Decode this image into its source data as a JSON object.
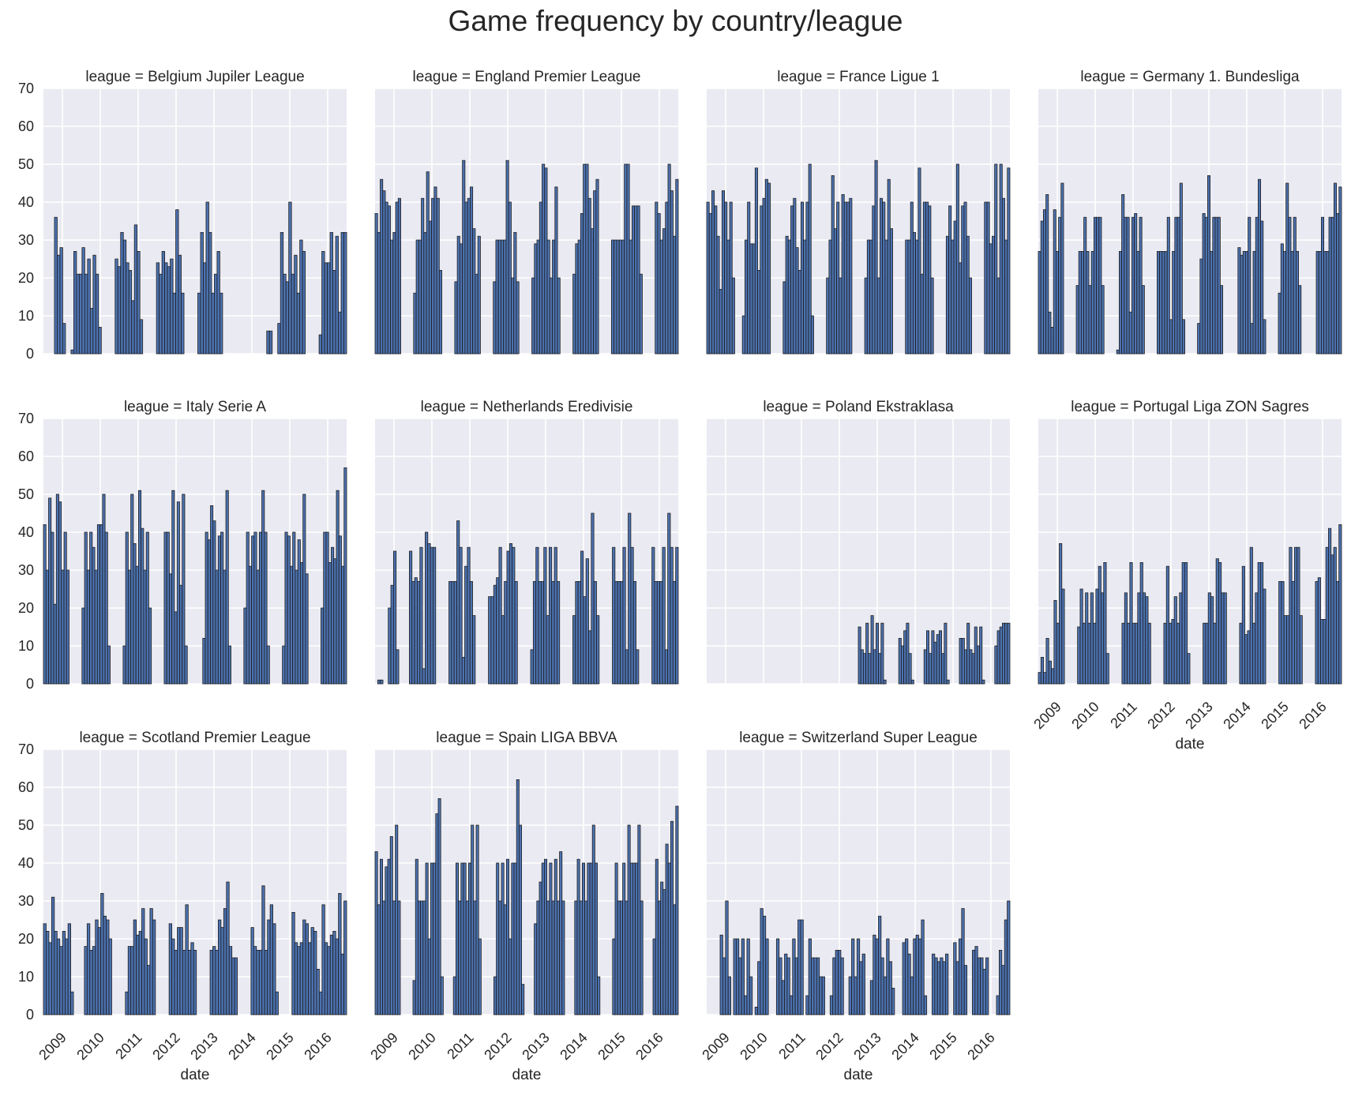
{
  "chart_data": {
    "type": "bar",
    "title": "Game frequency by country/league",
    "xlabel": "date",
    "ylabel": "",
    "ylim": [
      0,
      70
    ],
    "yticks": [
      0,
      10,
      20,
      30,
      40,
      50,
      60,
      70
    ],
    "xticks": [
      "2009",
      "2010",
      "2011",
      "2012",
      "2013",
      "2014",
      "2015",
      "2016"
    ],
    "x_range_months": [
      "2008-07",
      "2016-06"
    ],
    "grid": true,
    "facet_label_prefix": "league = ",
    "colors": {
      "bar": "#4c72b0",
      "edge": "#1e1e1e",
      "panel_bg": "#eaeaf2",
      "grid": "#ffffff"
    },
    "panels": [
      {
        "league": "Belgium Jupiler League",
        "values": [
          0,
          0,
          0,
          0,
          36,
          26,
          28,
          8,
          0,
          0,
          1,
          27,
          21,
          21,
          28,
          21,
          25,
          12,
          26,
          21,
          7,
          0,
          0,
          0,
          0,
          0,
          25,
          23,
          32,
          30,
          24,
          22,
          14,
          34,
          27,
          9,
          0,
          0,
          0,
          0,
          0,
          24,
          21,
          27,
          24,
          23,
          25,
          16,
          38,
          26,
          16,
          0,
          0,
          0,
          0,
          0,
          16,
          32,
          24,
          40,
          32,
          16,
          21,
          27,
          16,
          0,
          0,
          0,
          0,
          0,
          0,
          0,
          0,
          0,
          0,
          0,
          0,
          0,
          0,
          0,
          0,
          6,
          6,
          0,
          0,
          8,
          32,
          21,
          19,
          40,
          21,
          26,
          16,
          30,
          27,
          0,
          0,
          0,
          0,
          0,
          5,
          27,
          24,
          24,
          32,
          22,
          31,
          11,
          32,
          32
        ]
      },
      {
        "league": "England Premier League",
        "values": [
          37,
          32,
          46,
          43,
          40,
          39,
          30,
          32,
          40,
          41,
          0,
          0,
          0,
          0,
          0,
          16,
          30,
          30,
          41,
          32,
          48,
          35,
          41,
          44,
          41,
          22,
          0,
          0,
          0,
          0,
          0,
          19,
          31,
          29,
          51,
          40,
          41,
          44,
          33,
          21,
          31,
          0,
          0,
          0,
          0,
          0,
          19,
          30,
          30,
          30,
          30,
          51,
          40,
          20,
          32,
          19,
          0,
          0,
          0,
          0,
          0,
          20,
          29,
          30,
          40,
          50,
          49,
          30,
          20,
          30,
          44,
          20,
          0,
          0,
          0,
          0,
          0,
          21,
          29,
          30,
          37,
          50,
          50,
          41,
          33,
          43,
          46,
          0,
          0,
          0,
          0,
          0,
          30,
          30,
          30,
          30,
          30,
          50,
          50,
          30,
          39,
          39,
          39,
          21,
          0,
          0,
          0,
          0,
          0,
          40,
          37,
          30,
          33,
          40,
          50,
          43,
          31,
          46
        ]
      },
      {
        "league": "France Ligue 1",
        "values": [
          40,
          37,
          43,
          39,
          31,
          17,
          43,
          40,
          30,
          40,
          20,
          0,
          0,
          0,
          10,
          30,
          40,
          29,
          29,
          49,
          22,
          39,
          41,
          46,
          45,
          0,
          0,
          0,
          0,
          0,
          19,
          31,
          30,
          39,
          41,
          28,
          22,
          40,
          30,
          40,
          50,
          10,
          0,
          0,
          0,
          0,
          0,
          20,
          30,
          47,
          33,
          40,
          20,
          42,
          40,
          40,
          41,
          0,
          0,
          0,
          0,
          0,
          20,
          30,
          30,
          39,
          51,
          20,
          41,
          40,
          30,
          46,
          33,
          0,
          0,
          0,
          0,
          0,
          30,
          30,
          40,
          32,
          30,
          49,
          21,
          40,
          40,
          39,
          20,
          0,
          0,
          0,
          0,
          0,
          31,
          39,
          30,
          35,
          50,
          24,
          39,
          40,
          31,
          20,
          0,
          0,
          0,
          0,
          0,
          40,
          40,
          29,
          31,
          50,
          20,
          50,
          41,
          30,
          49
        ]
      },
      {
        "league": "Germany 1. Bundesliga",
        "values": [
          27,
          35,
          38,
          42,
          11,
          7,
          38,
          27,
          36,
          45,
          0,
          0,
          0,
          0,
          0,
          18,
          27,
          27,
          36,
          27,
          18,
          27,
          36,
          36,
          36,
          18,
          0,
          0,
          0,
          0,
          0,
          1,
          27,
          42,
          36,
          36,
          11,
          36,
          37,
          27,
          36,
          18,
          0,
          0,
          0,
          0,
          0,
          27,
          27,
          27,
          27,
          36,
          9,
          27,
          36,
          36,
          45,
          9,
          0,
          0,
          0,
          0,
          0,
          8,
          25,
          37,
          36,
          47,
          27,
          36,
          36,
          36,
          18,
          0,
          0,
          0,
          0,
          0,
          0,
          28,
          26,
          27,
          27,
          36,
          8,
          27,
          36,
          46,
          35,
          9,
          0,
          0,
          0,
          0,
          0,
          16,
          29,
          27,
          45,
          36,
          27,
          36,
          27,
          18,
          0,
          0,
          0,
          0,
          0,
          0,
          27,
          27,
          36,
          27,
          27,
          36,
          36,
          45,
          37,
          44
        ]
      },
      {
        "league": "Italy Serie A",
        "values": [
          42,
          30,
          49,
          40,
          21,
          50,
          48,
          30,
          40,
          30,
          0,
          0,
          0,
          0,
          0,
          20,
          40,
          30,
          40,
          36,
          30,
          42,
          42,
          50,
          40,
          10,
          0,
          0,
          0,
          0,
          0,
          10,
          40,
          30,
          50,
          37,
          31,
          51,
          41,
          30,
          40,
          20,
          0,
          0,
          0,
          0,
          0,
          40,
          40,
          29,
          51,
          19,
          48,
          26,
          50,
          10,
          0,
          0,
          0,
          0,
          0,
          0,
          12,
          40,
          38,
          47,
          43,
          30,
          39,
          40,
          30,
          51,
          10,
          0,
          0,
          0,
          0,
          0,
          20,
          40,
          31,
          39,
          40,
          30,
          40,
          51,
          40,
          10,
          0,
          0,
          0,
          0,
          0,
          10,
          40,
          39,
          31,
          40,
          30,
          38,
          32,
          50,
          29,
          0,
          0,
          0,
          0,
          0,
          20,
          40,
          40,
          32,
          36,
          33,
          51,
          39,
          31,
          57
        ]
      },
      {
        "league": "Netherlands Eredivisie",
        "values": [
          0,
          1,
          1,
          0,
          0,
          20,
          26,
          35,
          9,
          0,
          0,
          0,
          0,
          35,
          27,
          28,
          27,
          36,
          4,
          40,
          37,
          36,
          36,
          0,
          0,
          0,
          0,
          0,
          27,
          27,
          27,
          43,
          36,
          7,
          31,
          36,
          27,
          18,
          0,
          0,
          0,
          0,
          0,
          23,
          23,
          26,
          28,
          36,
          18,
          27,
          35,
          37,
          36,
          27,
          0,
          0,
          0,
          0,
          0,
          9,
          27,
          36,
          27,
          27,
          36,
          18,
          36,
          27,
          36,
          27,
          0,
          0,
          0,
          0,
          0,
          18,
          27,
          27,
          35,
          23,
          33,
          14,
          45,
          27,
          18,
          0,
          0,
          0,
          0,
          0,
          36,
          27,
          27,
          27,
          36,
          9,
          45,
          36,
          27,
          9,
          0,
          0,
          0,
          0,
          0,
          36,
          27,
          27,
          27,
          36,
          9,
          45,
          36,
          27,
          36
        ]
      },
      {
        "league": "Poland Ekstraklasa",
        "values": [
          0,
          0,
          0,
          0,
          0,
          0,
          0,
          0,
          0,
          0,
          0,
          0,
          0,
          0,
          0,
          0,
          0,
          0,
          0,
          0,
          0,
          0,
          0,
          0,
          0,
          0,
          0,
          0,
          0,
          0,
          0,
          0,
          0,
          0,
          0,
          0,
          0,
          0,
          0,
          0,
          0,
          0,
          0,
          0,
          0,
          0,
          0,
          0,
          0,
          0,
          0,
          0,
          0,
          0,
          0,
          0,
          0,
          0,
          0,
          0,
          15,
          9,
          8,
          16,
          8,
          18,
          9,
          16,
          8,
          16,
          1,
          0,
          0,
          0,
          0,
          0,
          12,
          10,
          14,
          16,
          8,
          1,
          0,
          0,
          0,
          0,
          9,
          14,
          8,
          14,
          11,
          13,
          14,
          8,
          16,
          1,
          0,
          0,
          0,
          0,
          12,
          12,
          9,
          16,
          9,
          8,
          15,
          10,
          15,
          1,
          0,
          0,
          0,
          0,
          10,
          14,
          15,
          16,
          16,
          16
        ]
      },
      {
        "league": "Portugal Liga ZON Sagres",
        "values": [
          3,
          7,
          3,
          12,
          6,
          4,
          22,
          16,
          37,
          25,
          0,
          0,
          0,
          0,
          0,
          15,
          25,
          16,
          24,
          16,
          24,
          16,
          25,
          31,
          24,
          32,
          8,
          0,
          0,
          0,
          0,
          0,
          16,
          24,
          16,
          32,
          16,
          16,
          24,
          32,
          24,
          23,
          16,
          0,
          0,
          0,
          0,
          0,
          16,
          31,
          16,
          17,
          23,
          16,
          24,
          32,
          32,
          8,
          0,
          0,
          0,
          0,
          0,
          16,
          16,
          24,
          23,
          16,
          33,
          32,
          24,
          24,
          0,
          0,
          0,
          0,
          0,
          16,
          31,
          13,
          14,
          36,
          16,
          24,
          32,
          32,
          25,
          0,
          0,
          0,
          0,
          0,
          27,
          27,
          18,
          18,
          36,
          27,
          36,
          36,
          18,
          0,
          0,
          0,
          0,
          0,
          27,
          28,
          17,
          17,
          36,
          41,
          34,
          36,
          27,
          42
        ]
      },
      {
        "league": "Scotland Premier League",
        "values": [
          24,
          22,
          19,
          31,
          22,
          20,
          18,
          22,
          20,
          24,
          6,
          0,
          0,
          0,
          0,
          18,
          24,
          17,
          18,
          25,
          23,
          32,
          26,
          25,
          20,
          0,
          0,
          0,
          0,
          0,
          6,
          18,
          18,
          25,
          21,
          22,
          28,
          20,
          13,
          28,
          25,
          0,
          0,
          0,
          0,
          0,
          24,
          20,
          17,
          23,
          23,
          17,
          29,
          17,
          19,
          17,
          0,
          0,
          0,
          0,
          0,
          17,
          18,
          17,
          25,
          23,
          28,
          35,
          18,
          15,
          15,
          0,
          0,
          0,
          0,
          0,
          23,
          18,
          17,
          17,
          34,
          17,
          25,
          29,
          24,
          6,
          0,
          0,
          0,
          0,
          0,
          27,
          19,
          18,
          19,
          25,
          24,
          19,
          23,
          22,
          12,
          6,
          29,
          19,
          18,
          21,
          22,
          20,
          32,
          16,
          30
        ]
      },
      {
        "league": "Spain LIGA BBVA",
        "values": [
          43,
          29,
          41,
          30,
          39,
          41,
          47,
          30,
          50,
          30,
          0,
          0,
          0,
          0,
          0,
          9,
          41,
          30,
          30,
          30,
          40,
          20,
          40,
          40,
          53,
          57,
          10,
          0,
          0,
          0,
          0,
          10,
          40,
          30,
          40,
          40,
          30,
          40,
          50,
          30,
          50,
          20,
          0,
          0,
          0,
          0,
          0,
          10,
          40,
          30,
          40,
          29,
          41,
          20,
          40,
          40,
          62,
          50,
          8,
          0,
          0,
          0,
          0,
          24,
          30,
          35,
          40,
          41,
          30,
          40,
          30,
          41,
          30,
          43,
          30,
          0,
          0,
          0,
          0,
          30,
          41,
          30,
          40,
          30,
          40,
          40,
          50,
          40,
          10,
          0,
          0,
          0,
          0,
          0,
          20,
          40,
          30,
          30,
          40,
          30,
          50,
          40,
          40,
          40,
          50,
          30,
          0,
          0,
          0,
          0,
          20,
          41,
          30,
          35,
          33,
          45,
          40,
          51,
          29,
          55
        ]
      },
      {
        "league": "Switzerland Super League",
        "values": [
          0,
          0,
          0,
          0,
          0,
          21,
          15,
          30,
          10,
          0,
          20,
          20,
          15,
          20,
          5,
          20,
          10,
          0,
          2,
          14,
          28,
          26,
          20,
          0,
          0,
          0,
          20,
          15,
          9,
          16,
          15,
          5,
          20,
          15,
          25,
          25,
          0,
          5,
          20,
          15,
          15,
          15,
          10,
          10,
          0,
          0,
          5,
          15,
          17,
          17,
          15,
          0,
          0,
          10,
          20,
          10,
          20,
          14,
          16,
          0,
          0,
          9,
          21,
          20,
          26,
          15,
          10,
          20,
          14,
          7,
          0,
          0,
          0,
          19,
          20,
          16,
          10,
          20,
          21,
          20,
          25,
          5,
          0,
          0,
          16,
          15,
          14,
          15,
          14,
          16,
          0,
          0,
          19,
          14,
          20,
          28,
          13,
          0,
          0,
          17,
          18,
          15,
          15,
          12,
          15,
          0,
          0,
          0,
          5,
          17,
          13,
          25,
          30
        ]
      }
    ]
  }
}
